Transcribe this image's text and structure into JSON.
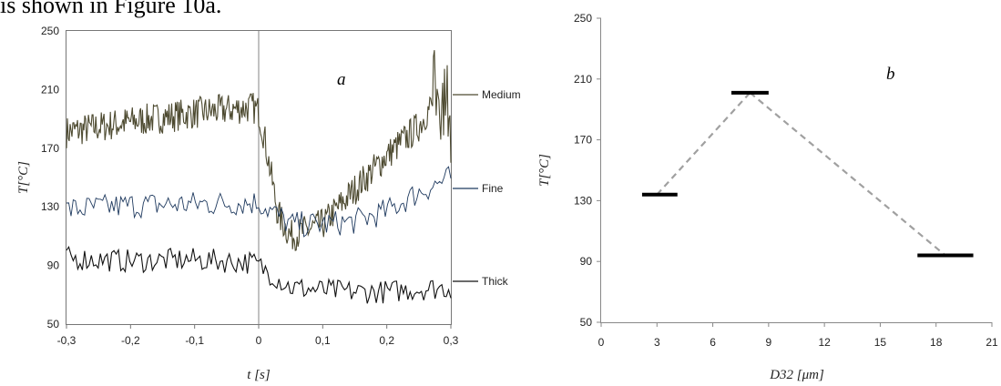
{
  "page_text": "is shown in Figure 10a.",
  "colors": {
    "medium": "#4d4a30",
    "fine": "#1f3a5f",
    "thick": "#111111",
    "dashed": "#a0a0a0",
    "marker": "#000000"
  },
  "chart_data": [
    {
      "type": "line",
      "panel_label": "a",
      "xlabel": "t [s]",
      "ylabel": "T[°C]",
      "xlim": [
        -0.3,
        0.3
      ],
      "ylim": [
        50,
        250
      ],
      "xticks": [
        "-0,3",
        "-0,2",
        "-0,1",
        "0",
        "0,1",
        "0,2",
        "0,3"
      ],
      "yticks": [
        "50",
        "90",
        "130",
        "170",
        "210",
        "250"
      ],
      "grid": false,
      "vertical_marker_x": 0,
      "legend_placement": "right, at series end",
      "series": [
        {
          "name": "Medium",
          "color": "#4d4a30",
          "x": [
            -0.3,
            -0.2,
            -0.1,
            -0.01,
            0.0,
            0.01,
            0.03,
            0.05,
            0.1,
            0.15,
            0.2,
            0.25,
            0.27,
            0.29,
            0.3
          ],
          "y": [
            181,
            188,
            194,
            198,
            195,
            175,
            125,
            110,
            118,
            142,
            165,
            185,
            200,
            215,
            190
          ]
        },
        {
          "name": "Fine",
          "color": "#1f3a5f",
          "x": [
            -0.3,
            -0.2,
            -0.1,
            0.0,
            0.05,
            0.1,
            0.15,
            0.2,
            0.25,
            0.3
          ],
          "y": [
            128,
            131,
            132,
            133,
            118,
            118,
            120,
            127,
            140,
            150
          ]
        },
        {
          "name": "Thick",
          "color": "#111111",
          "x": [
            -0.3,
            -0.2,
            -0.1,
            -0.01,
            0.0,
            0.05,
            0.1,
            0.15,
            0.2,
            0.25,
            0.3
          ],
          "y": [
            95,
            93,
            94,
            92,
            90,
            75,
            73,
            72,
            72,
            74,
            75
          ]
        }
      ]
    },
    {
      "type": "scatter",
      "panel_label": "b",
      "xlabel": "D32 [μm]",
      "ylabel": "T[°C]",
      "xlim": [
        0,
        21
      ],
      "ylim": [
        50,
        250
      ],
      "xticks": [
        "0",
        "3",
        "6",
        "9",
        "12",
        "15",
        "18",
        "21"
      ],
      "yticks": [
        "50",
        "90",
        "130",
        "170",
        "210",
        "250"
      ],
      "grid": false,
      "points": [
        {
          "x": 3,
          "y": 134,
          "x_range": [
            2.2,
            4.1
          ]
        },
        {
          "x": 8,
          "y": 201,
          "x_range": [
            7.0,
            9.0
          ]
        },
        {
          "x": 18.5,
          "y": 94,
          "x_range": [
            17.0,
            20.0
          ]
        }
      ],
      "connector_style": "dashed"
    }
  ]
}
